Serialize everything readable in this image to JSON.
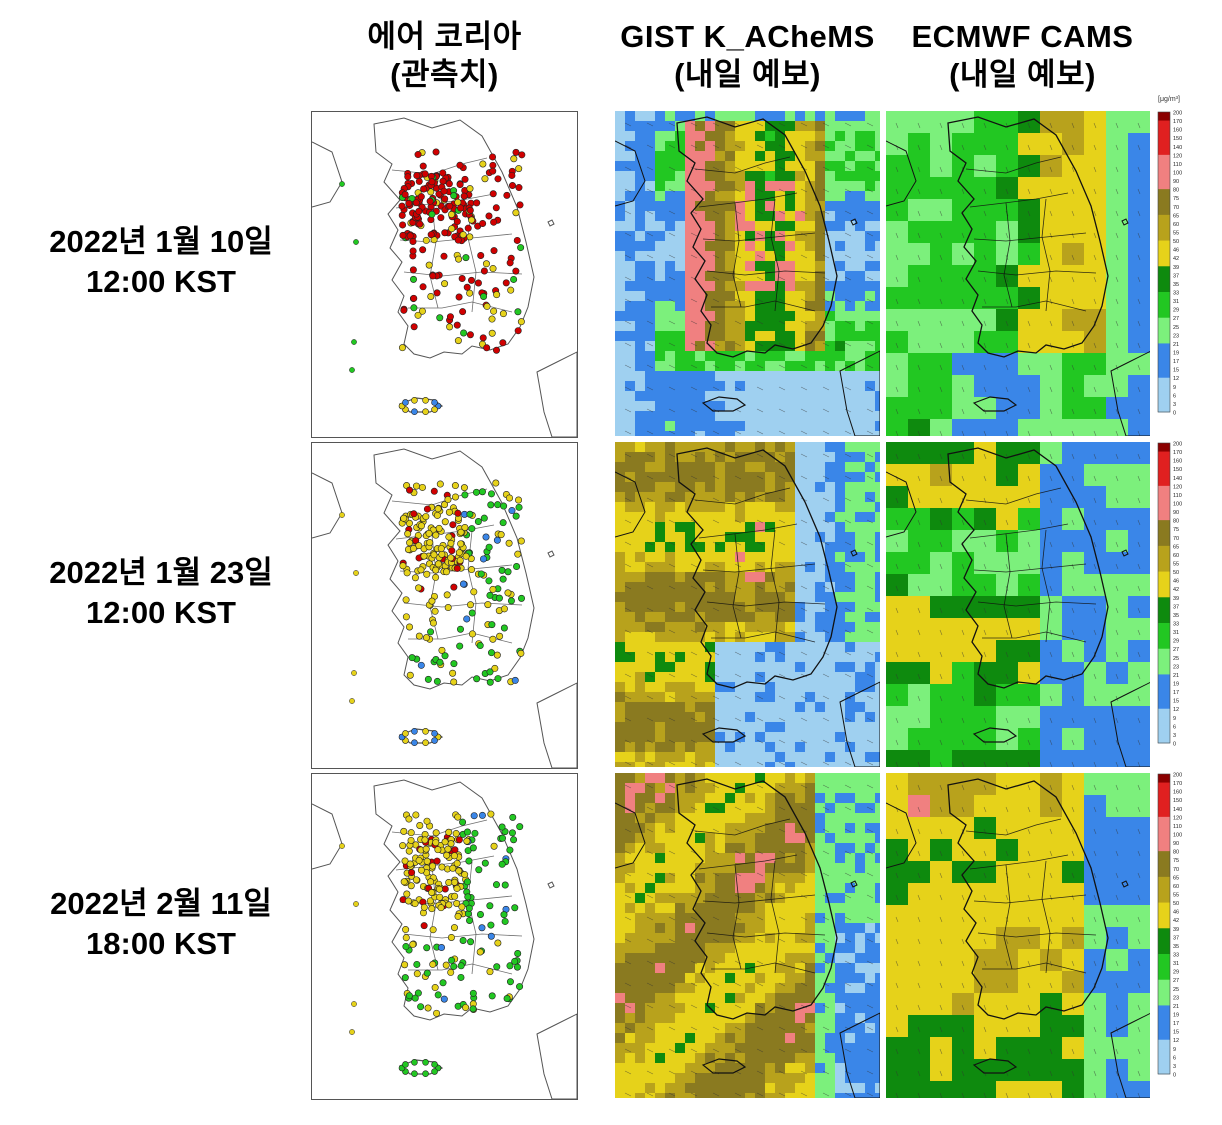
{
  "columns": [
    {
      "line1": "에어 코리아",
      "line2": "(관측치)"
    },
    {
      "line1": "GIST K_ACheMS",
      "line2": "(내일 예보)"
    },
    {
      "line1": "ECMWF CAMS",
      "line2": "(내일 예보)"
    }
  ],
  "rows": [
    {
      "date": "2022년 1월 10일",
      "time": "12:00 KST",
      "obs_level": "high"
    },
    {
      "date": "2022년 1월 23일",
      "time": "12:00 KST",
      "obs_level": "medium"
    },
    {
      "date": "2022년 2월 11일",
      "time": "18:00 KST",
      "obs_level": "medium"
    }
  ],
  "legend": {
    "unit": "[μg/m³]",
    "ticks": [
      "200",
      "170",
      "160",
      "150",
      "140",
      "120",
      "110",
      "100",
      "90",
      "80",
      "75",
      "70",
      "65",
      "60",
      "55",
      "50",
      "46",
      "42",
      "39",
      "37",
      "35",
      "33",
      "31",
      "29",
      "27",
      "25",
      "23",
      "21",
      "19",
      "17",
      "15",
      "12",
      "9",
      "6",
      "3",
      "0"
    ],
    "colors": {
      "very_bad": "#d00000",
      "bad_light": "#f08080",
      "moderate": "#e6d21a",
      "moderate_dark": "#8a7a20",
      "good": "#22c722",
      "good_dark": "#0e8a0e",
      "very_good": "#3a86e8",
      "very_good_light": "#9fd0f0"
    }
  }
}
